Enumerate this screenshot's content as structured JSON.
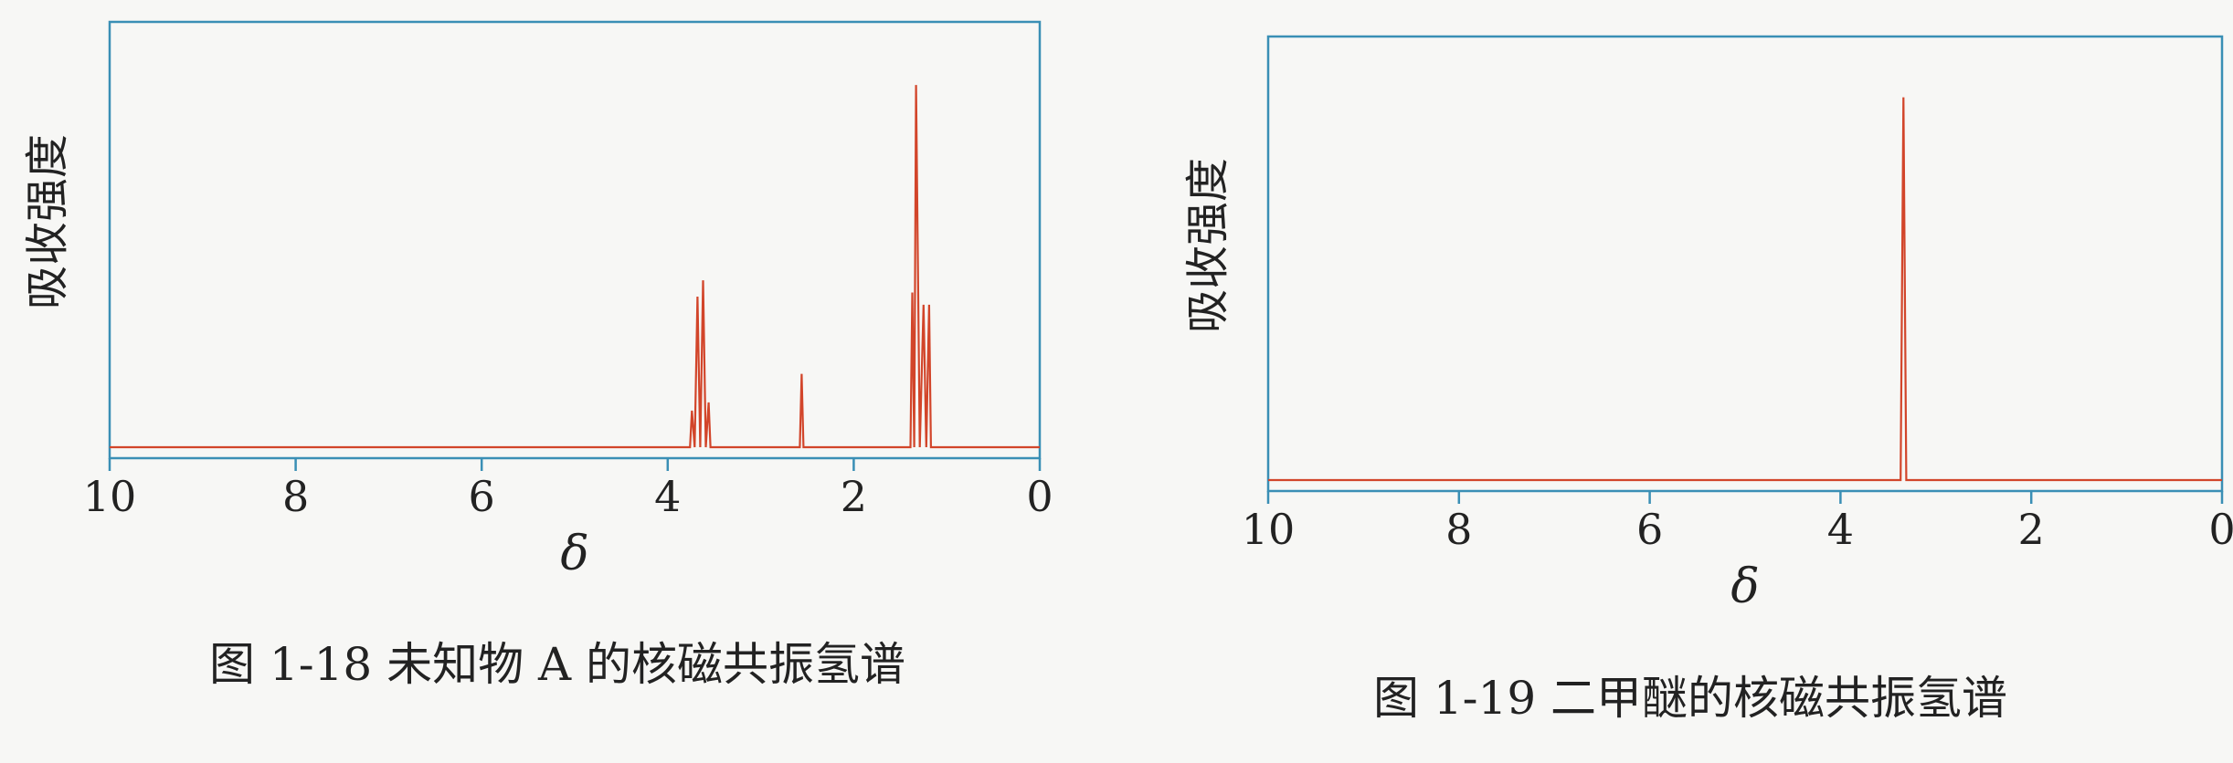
{
  "chart_data": [
    {
      "type": "line",
      "caption": "图 1-18  未知物 A 的核磁共振氢谱",
      "y_label": "吸收强度",
      "x_label": "δ",
      "color": "#d2452a",
      "x": [
        10,
        3.76,
        3.74,
        3.71,
        3.68,
        3.65,
        3.62,
        3.59,
        3.56,
        3.54,
        2.58,
        2.56,
        2.54,
        1.39,
        1.37,
        1.35,
        1.33,
        1.29,
        1.25,
        1.22,
        1.19,
        1.17,
        0
      ],
      "values": [
        0,
        0,
        0.9,
        0,
        3.7,
        0,
        4.1,
        0,
        1.1,
        0,
        0,
        1.8,
        0,
        0,
        3.8,
        0,
        8.9,
        0,
        3.5,
        0,
        3.5,
        0,
        0
      ],
      "xlim": [
        10,
        0
      ],
      "xticks": [
        10,
        8,
        6,
        4,
        2,
        0
      ],
      "ylim": [
        0,
        10
      ]
    },
    {
      "type": "line",
      "caption": "图 1-19  二甲醚的核磁共振氢谱",
      "y_label": "吸收强度",
      "x_label": "δ",
      "color": "#d2452a",
      "x": [
        10,
        3.37,
        3.34,
        3.31,
        0
      ],
      "values": [
        0,
        0,
        9.0,
        0,
        0
      ],
      "xlim": [
        10,
        0
      ],
      "xticks": [
        10,
        8,
        6,
        4,
        2,
        0
      ],
      "ylim": [
        0,
        10
      ]
    }
  ]
}
